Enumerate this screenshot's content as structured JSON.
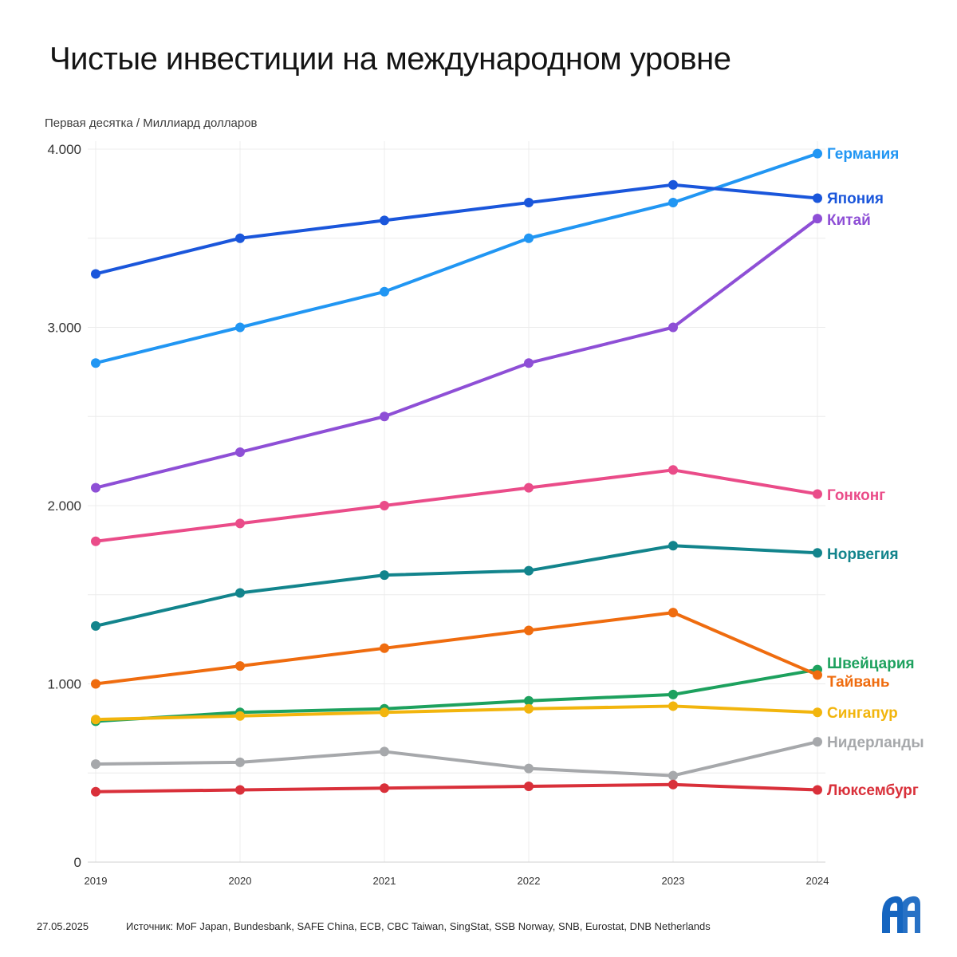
{
  "header": {
    "title": "Чистые инвестиции на международном уровне",
    "subtitle": "Первая десятка / Миллиард долларов"
  },
  "footer": {
    "date": "27.05.2025",
    "source": "Источник: MoF Japan, Bundesbank, SAFE China, ECB, CBC Taiwan, SingStat, SSB Norway, SNB, Eurostat, DNB Netherlands"
  },
  "logo": {
    "icon": "aa-logo-icon",
    "color": "#1565c0"
  },
  "chart_data": {
    "type": "line",
    "title": "Чистые инвестиции на международном уровне",
    "subtitle": "Первая десятка / Миллиард долларов",
    "x": [
      "2019",
      "2020",
      "2021",
      "2022",
      "2023",
      "2024"
    ],
    "ylim": [
      0,
      4000
    ],
    "yticks": [
      0,
      1000,
      2000,
      3000,
      4000
    ],
    "ytick_labels": [
      "0",
      "1.000",
      "2.000",
      "3.000",
      "4.000"
    ],
    "grid": true,
    "legend": "direct labels at right end",
    "series": [
      {
        "name": "Германия",
        "color": "#2196f3",
        "values": [
          2800,
          3000,
          3200,
          3500,
          3700,
          3975
        ]
      },
      {
        "name": "Япония",
        "color": "#1a56db",
        "values": [
          3300,
          3500,
          3600,
          3700,
          3800,
          3725
        ]
      },
      {
        "name": "Китай",
        "color": "#8e4fd6",
        "values": [
          2100,
          2300,
          2500,
          2800,
          3000,
          3610
        ]
      },
      {
        "name": "Гонконг",
        "color": "#ea4c89",
        "values": [
          1800,
          1900,
          2000,
          2100,
          2200,
          2065
        ]
      },
      {
        "name": "Норвегия",
        "color": "#12848c",
        "values": [
          1325,
          1510,
          1610,
          1635,
          1775,
          1735
        ]
      },
      {
        "name": "Швейцария",
        "color": "#1da15e",
        "values": [
          790,
          840,
          860,
          905,
          940,
          1080
        ]
      },
      {
        "name": "Тайвань",
        "color": "#ef6c0f",
        "values": [
          1000,
          1100,
          1200,
          1300,
          1400,
          1050
        ]
      },
      {
        "name": "Сингапур",
        "color": "#f2b50d",
        "values": [
          800,
          820,
          840,
          860,
          875,
          840
        ]
      },
      {
        "name": "Нидерланды",
        "color": "#a6a8ab",
        "values": [
          550,
          560,
          620,
          525,
          485,
          675
        ]
      },
      {
        "name": "Люксембург",
        "color": "#d9303a",
        "values": [
          395,
          405,
          415,
          425,
          435,
          405
        ]
      }
    ]
  }
}
